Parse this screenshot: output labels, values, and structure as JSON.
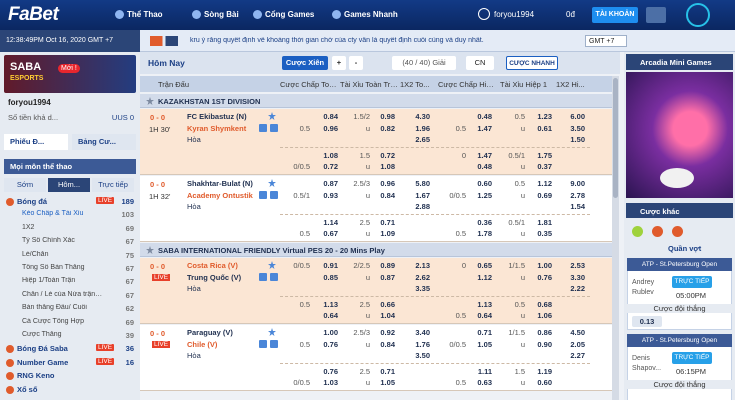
{
  "nav": {
    "logo": "FaBet",
    "menu": [
      "Thể Thao",
      "Sòng Bài",
      "Cổng Games",
      "Games Nhanh"
    ],
    "user": "foryou1994",
    "balance": "0đ",
    "account": "TÀI KHOẢN"
  },
  "info_bar": {
    "time": "12:38:49PM Oct 16, 2020 GMT +7",
    "notice": "kru ý rằng quyết định về khoảng thời gian chờ của cty vẫn là quyết định cuối cùng và duy nhất.",
    "timezone": "GMT +7"
  },
  "sidebar": {
    "banner": "SABA",
    "banner_sub": "ESPORTS",
    "banner_badge": "Mới !",
    "user": "foryou1994",
    "balance_label": "Số tiền khả d...",
    "balance": "UUS 0",
    "tabs": [
      "Phiếu Đ...",
      "Bảng Cư..."
    ],
    "all_sports": "Mọi môn thể thao",
    "time_tabs": [
      "Sớm",
      "Hôm...",
      "Trực tiếp"
    ],
    "sports": [
      {
        "name": "Bóng đá",
        "live": "LIVE",
        "count": "189"
      },
      {
        "name": "Kèo Chấp & Tài Xỉu",
        "count": "103",
        "sub": true
      },
      {
        "name": "1X2",
        "count": "69",
        "sub": true
      },
      {
        "name": "Tỷ Số Chính Xác",
        "count": "67",
        "sub": true
      },
      {
        "name": "Lẻ/Chẵn",
        "count": "75",
        "sub": true
      },
      {
        "name": "Tổng Số Bàn Thắng",
        "count": "67",
        "sub": true
      },
      {
        "name": "Hiệp 1/Toàn Trận",
        "count": "67",
        "sub": true
      },
      {
        "name": "Chẵn / Lẻ của Nửa trận/To...",
        "count": "67",
        "sub": true
      },
      {
        "name": "Bàn thắng Đầu/ Cuối",
        "count": "62",
        "sub": true
      },
      {
        "name": "Cá Cược Tổng Hợp",
        "count": "69",
        "sub": true
      },
      {
        "name": "Cược Thắng",
        "count": "39",
        "sub": true
      },
      {
        "name": "Bóng Đá Saba",
        "live": "LIVE",
        "count": "36"
      },
      {
        "name": "Number Game",
        "live": "LIVE",
        "count": "16"
      },
      {
        "name": "RNG Keno"
      },
      {
        "name": "Xổ số"
      }
    ]
  },
  "toolbar": {
    "title": "Hôm Nay",
    "parlay": "Cược Xiên",
    "plus": "+",
    "minus": "-",
    "leagues": "(40 / 40) Giải",
    "sort": "CN",
    "quick": "CƯỢC NHANH"
  },
  "table": {
    "headers": [
      "Trận Đấu",
      "Cược Chấp Toà...",
      "Tài Xỉu Toàn Trận",
      "1X2 To...",
      "Cược Chấp Hiệp 1",
      "Tài Xỉu Hiệp 1",
      "1X2 Hi..."
    ],
    "leagues": [
      {
        "name": "KAZAKHSTAN 1ST DIVISION",
        "matches": [
          {
            "score": "0 - 0",
            "time": "1H 30'",
            "teams": [
              "FC Ekibastuz (N)",
              "Kyran Shymkent",
              "Hòa"
            ],
            "blocks": [
              [
                [
                  null,
                  "0.84",
                  "1.5/2",
                  "0.98",
                  "4.30",
                  null,
                  "0.48",
                  "0.5",
                  "1.23",
                  "6.00"
                ],
                [
                  "0.5",
                  "0.96",
                  "u",
                  "0.82",
                  "1.96",
                  "0.5",
                  "1.47",
                  "u",
                  "0.61",
                  "3.50"
                ],
                [
                  null,
                  null,
                  null,
                  null,
                  "2.65",
                  null,
                  null,
                  null,
                  null,
                  "1.50"
                ]
              ],
              [
                [
                  null,
                  "1.08",
                  "1.5",
                  "0.72",
                  null,
                  "0",
                  "1.47",
                  "0.5/1",
                  "1.75",
                  null
                ],
                [
                  "0/0.5",
                  "0.72",
                  "u",
                  "1.08",
                  null,
                  null,
                  "0.48",
                  "u",
                  "0.37",
                  null
                ]
              ]
            ]
          },
          {
            "score": "0 - 0",
            "time": "1H 32'",
            "teams": [
              "Shakhtar-Bulat (N)",
              "Academy Ontustik",
              "Hòa"
            ],
            "blocks": [
              [
                [
                  null,
                  "0.87",
                  "2.5/3",
                  "0.96",
                  "5.80",
                  null,
                  "0.60",
                  "0.5",
                  "1.12",
                  "9.00"
                ],
                [
                  "0.5/1",
                  "0.93",
                  "u",
                  "0.84",
                  "1.67",
                  "0/0.5",
                  "1.25",
                  "u",
                  "0.69",
                  "2.78"
                ],
                [
                  null,
                  null,
                  null,
                  null,
                  "2.88",
                  null,
                  null,
                  null,
                  null,
                  "1.54"
                ]
              ],
              [
                [
                  null,
                  "1.14",
                  "2.5",
                  "0.71",
                  null,
                  null,
                  "0.36",
                  "0.5/1",
                  "1.81",
                  null
                ],
                [
                  "0.5",
                  "0.67",
                  "u",
                  "1.09",
                  null,
                  "0.5",
                  "1.78",
                  "u",
                  "0.35",
                  null
                ]
              ]
            ]
          }
        ]
      },
      {
        "name": "SABA INTERNATIONAL FRIENDLY Virtual PES 20 - 20 Mins Play",
        "matches": [
          {
            "score": "0 - 0",
            "time": "LIVE",
            "teams": [
              "Costa Rica (V)",
              "Trung Quốc (V)",
              "Hòa"
            ],
            "blocks": [
              [
                [
                  "0/0.5",
                  "0.91",
                  "2/2.5",
                  "0.89",
                  "2.13",
                  "0",
                  "0.65",
                  "1/1.5",
                  "1.00",
                  "2.53"
                ],
                [
                  null,
                  "0.85",
                  "u",
                  "0.87",
                  "2.62",
                  null,
                  "1.12",
                  "u",
                  "0.76",
                  "3.30"
                ],
                [
                  null,
                  null,
                  null,
                  null,
                  "3.35",
                  null,
                  null,
                  null,
                  null,
                  "2.22"
                ]
              ],
              [
                [
                  "0.5",
                  "1.13",
                  "2.5",
                  "0.66",
                  null,
                  null,
                  "1.13",
                  "0.5",
                  "0.68",
                  null
                ],
                [
                  null,
                  "0.64",
                  "u",
                  "1.04",
                  null,
                  "0.5",
                  "0.64",
                  "u",
                  "1.06",
                  null
                ]
              ]
            ]
          },
          {
            "score": "0 - 0",
            "time": "LIVE",
            "teams": [
              "Paraguay (V)",
              "Chile (V)",
              "Hòa"
            ],
            "blocks": [
              [
                [
                  null,
                  "1.00",
                  "2.5/3",
                  "0.92",
                  "3.40",
                  null,
                  "0.71",
                  "1/1.5",
                  "0.86",
                  "4.50"
                ],
                [
                  "0.5",
                  "0.76",
                  "u",
                  "0.84",
                  "1.76",
                  "0/0.5",
                  "1.05",
                  "u",
                  "0.90",
                  "2.05"
                ],
                [
                  null,
                  null,
                  null,
                  null,
                  "3.50",
                  null,
                  null,
                  null,
                  null,
                  "2.27"
                ]
              ],
              [
                [
                  null,
                  "0.76",
                  "2.5",
                  "0.71",
                  null,
                  null,
                  "1.11",
                  "1.5",
                  "1.19",
                  null
                ],
                [
                  "0/0.5",
                  "1.03",
                  "u",
                  "1.05",
                  null,
                  "0.5",
                  "0.63",
                  "u",
                  "0.60",
                  null
                ]
              ]
            ]
          }
        ]
      }
    ]
  },
  "right": {
    "title": "Arcadia Mini Games",
    "other": "Cược khác",
    "sport": "Quần vợt",
    "events": [
      {
        "league": "ATP - St.Petersburg Open",
        "player": "Andrey Rublev",
        "status": "TRỰC TIẾP",
        "time": "05:00PM",
        "market": "Cược đội thắng",
        "odds": "0.13"
      },
      {
        "league": "ATP - St.Petersburg Open",
        "player": "Denis Shapov...",
        "status": "TRỰC TIẾP",
        "time": "06:15PM",
        "market": "Cược đội thắng"
      }
    ]
  }
}
